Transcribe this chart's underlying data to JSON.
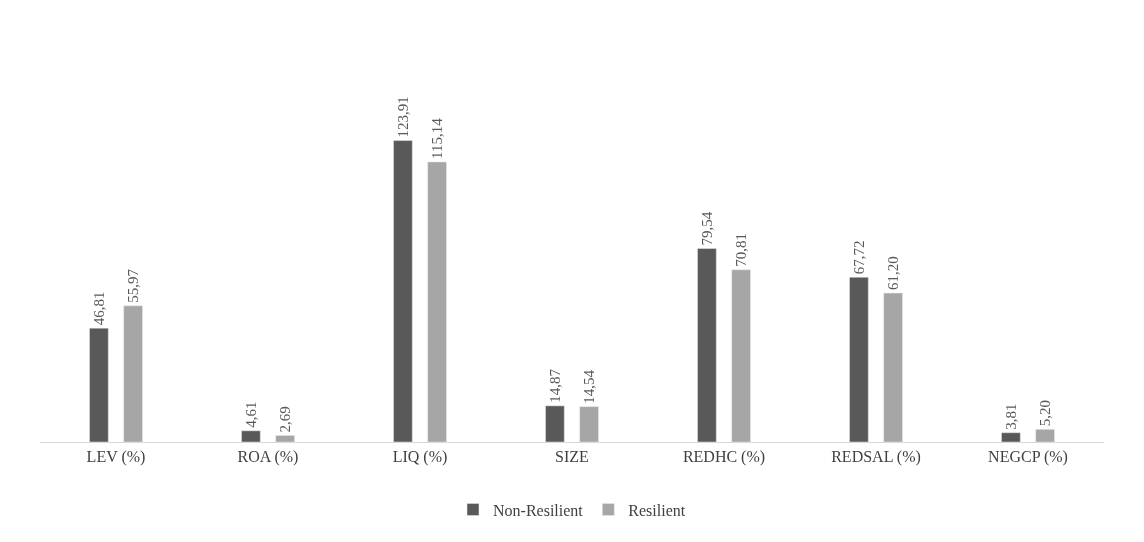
{
  "chart_data": {
    "type": "bar",
    "categories": [
      "LEV (%)",
      "ROA (%)",
      "LIQ (%)",
      "SIZE",
      "REDHC (%)",
      "REDSAL (%)",
      "NEGCP (%)"
    ],
    "series": [
      {
        "name": "Non-Resilient",
        "color": "#595959",
        "values": [
          46.81,
          4.61,
          123.91,
          14.87,
          79.54,
          67.72,
          3.81
        ],
        "value_labels": [
          "46,81",
          "4,61",
          "123,91",
          "14,87",
          "79,54",
          "67,72",
          "3,81"
        ]
      },
      {
        "name": "Resilient",
        "color": "#a6a6a6",
        "values": [
          55.97,
          2.69,
          115.14,
          14.54,
          70.81,
          61.2,
          5.2
        ],
        "value_labels": [
          "55,97",
          "2,69",
          "115,14",
          "14,54",
          "70,81",
          "61,20",
          "5,20"
        ]
      }
    ],
    "legend": "bottom"
  }
}
